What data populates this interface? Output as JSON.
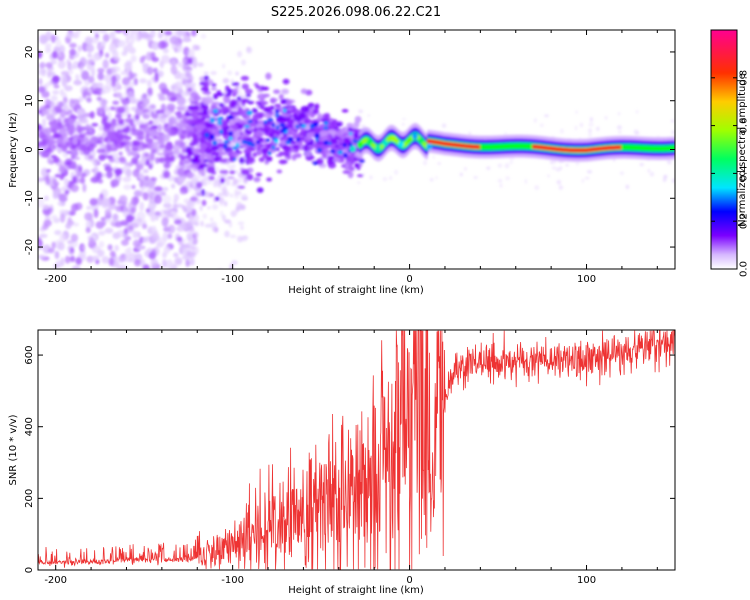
{
  "figure_title": "S225.2026.098.06.22.C21",
  "chart_data": [
    {
      "type": "heatmap",
      "title": "S225.2026.098.06.22.C21",
      "xlabel": "Height of straight line (km)",
      "ylabel": "Frequency (Hz)",
      "xlim": [
        -210,
        150
      ],
      "ylim": [
        -24.5,
        24.5
      ],
      "x_ticks": [
        -200,
        -100,
        0,
        100
      ],
      "y_ticks": [
        -20,
        -10,
        0,
        10,
        20
      ],
      "colorbar": {
        "label": "Normalized spectral amplitude",
        "range": [
          0,
          1
        ],
        "ticks": [
          0.0,
          0.2,
          0.4,
          0.6,
          0.8
        ],
        "colors": [
          "#ffffff",
          "#d6b8ff",
          "#7a00ff",
          "#0000ff",
          "#00e5ff",
          "#00ff00",
          "#ffff00",
          "#ff8000",
          "#ff0000",
          "#ff00a0"
        ]
      },
      "description_of_structure": {
        "noise_region_x": [
          -210,
          -125
        ],
        "transition_region_x": [
          -125,
          -25
        ],
        "tone_center_hz": [
          {
            "x": -110,
            "f": 4
          },
          {
            "x": -90,
            "f": 3
          },
          {
            "x": -60,
            "f": 5
          },
          {
            "x": -40,
            "f": 1
          },
          {
            "x": -20,
            "f": 1
          },
          {
            "x": 0,
            "f": 2
          },
          {
            "x": 20,
            "f": 1
          },
          {
            "x": 60,
            "f": 0.5
          },
          {
            "x": 100,
            "f": 0
          },
          {
            "x": 150,
            "f": 0.5
          }
        ]
      }
    },
    {
      "type": "line",
      "xlabel": "Height of straight line (km)",
      "ylabel": "SNR (10 * v/v)",
      "xlim": [
        -210,
        150
      ],
      "ylim": [
        0,
        670
      ],
      "x_ticks": [
        -200,
        -100,
        0,
        100
      ],
      "y_ticks": [
        0,
        200,
        400,
        600
      ],
      "color": "#ee3333",
      "series": [
        {
          "name": "SNR",
          "x": [
            -210,
            -190,
            -170,
            -150,
            -130,
            -115,
            -100,
            -90,
            -80,
            -70,
            -60,
            -50,
            -40,
            -30,
            -20,
            -10,
            -5,
            0,
            5,
            10,
            12,
            15,
            20,
            25,
            30,
            40,
            50,
            60,
            70,
            80,
            90,
            100,
            110,
            120,
            130,
            140,
            150
          ],
          "y": [
            20,
            22,
            25,
            28,
            30,
            40,
            60,
            90,
            110,
            120,
            130,
            150,
            170,
            190,
            230,
            280,
            320,
            350,
            380,
            420,
            180,
            400,
            480,
            550,
            570,
            580,
            585,
            580,
            585,
            590,
            590,
            595,
            600,
            610,
            620,
            625,
            630
          ]
        }
      ]
    }
  ]
}
